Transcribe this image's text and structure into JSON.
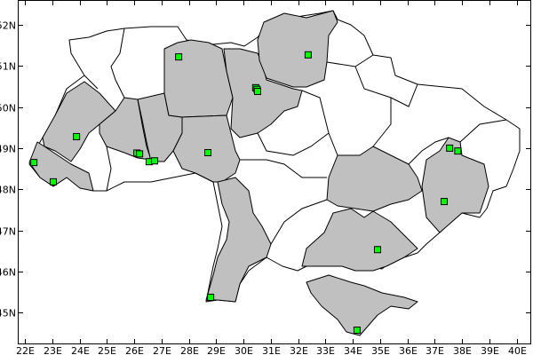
{
  "map": {
    "x_ticks": [
      "22E",
      "23E",
      "24E",
      "25E",
      "26E",
      "27E",
      "28E",
      "29E",
      "30E",
      "31E",
      "32E",
      "33E",
      "34E",
      "35E",
      "36E",
      "37E",
      "38E",
      "39E",
      "40E"
    ],
    "x_tick_values": [
      22,
      23,
      24,
      25,
      26,
      27,
      28,
      29,
      30,
      31,
      32,
      33,
      34,
      35,
      36,
      37,
      38,
      39,
      40
    ],
    "y_ticks": [
      "52N",
      "51N",
      "50N",
      "49N",
      "48N",
      "47N",
      "46N",
      "45N"
    ],
    "y_tick_values": [
      52,
      51,
      50,
      49,
      48,
      47,
      46,
      45
    ],
    "lon_range": [
      21.75,
      40.5
    ],
    "lat_range": [
      44.2,
      52.6
    ],
    "colors": {
      "highlighted_region": "#c0c0c0",
      "other_region": "#ffffff",
      "marker": "#00ff00",
      "border": "#000000"
    },
    "markers": [
      {
        "lon": 22.33,
        "lat": 48.65
      },
      {
        "lon": 23.04,
        "lat": 48.18
      },
      {
        "lon": 23.89,
        "lat": 49.28
      },
      {
        "lon": 26.1,
        "lat": 48.88
      },
      {
        "lon": 26.2,
        "lat": 48.86
      },
      {
        "lon": 26.55,
        "lat": 48.67
      },
      {
        "lon": 26.75,
        "lat": 48.69
      },
      {
        "lon": 27.63,
        "lat": 51.22
      },
      {
        "lon": 28.7,
        "lat": 48.89
      },
      {
        "lon": 30.45,
        "lat": 50.47
      },
      {
        "lon": 30.5,
        "lat": 50.43
      },
      {
        "lon": 30.52,
        "lat": 50.38
      },
      {
        "lon": 32.37,
        "lat": 51.27
      },
      {
        "lon": 28.8,
        "lat": 45.37
      },
      {
        "lon": 34.91,
        "lat": 46.53
      },
      {
        "lon": 34.16,
        "lat": 44.57
      },
      {
        "lon": 37.55,
        "lat": 49.0
      },
      {
        "lon": 37.85,
        "lat": 48.93
      },
      {
        "lon": 37.35,
        "lat": 47.7
      }
    ]
  }
}
